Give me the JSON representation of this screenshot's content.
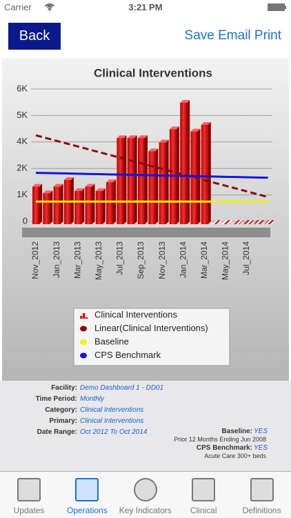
{
  "status_bar": {
    "carrier": "Carrier",
    "time": "3:21 PM"
  },
  "nav": {
    "back": "Back",
    "actions": [
      "Save",
      "Email",
      "Print"
    ]
  },
  "chart_data": {
    "type": "bar",
    "title": "Clinical Interventions",
    "categories": [
      "Nov_2012",
      null,
      "Jan_2013",
      null,
      "Mar_2013",
      null,
      "May_2013",
      null,
      "Jul_2013",
      null,
      "Sep_2013",
      null,
      "Nov_2013",
      null,
      "Jan_2014",
      null,
      "Mar_2014",
      null,
      "May_2014",
      null,
      "Jul_2014",
      null,
      null
    ],
    "series": [
      {
        "name": "Clinical Interventions",
        "type": "bar",
        "color": "#d41a1a",
        "values": [
          1700,
          1400,
          1700,
          2000,
          1500,
          1700,
          1500,
          1900,
          3900,
          3900,
          3900,
          3300,
          3700,
          4300,
          5500,
          4200,
          4500,
          0,
          0,
          0,
          0,
          0,
          0
        ]
      },
      {
        "name": "Linear(Clinical Interventions)",
        "type": "line",
        "dashed": true,
        "color": "#8b0a0a",
        "values": [
          3900,
          3773,
          3646,
          3519,
          3392,
          3265,
          3138,
          3011,
          2884,
          2757,
          2630,
          2503,
          2376,
          2249,
          2122,
          1995,
          1868,
          1741,
          1614,
          1487,
          1360,
          1233,
          1106
        ]
      },
      {
        "name": "Baseline",
        "type": "line",
        "color": "#f2f20a",
        "values": [
          900,
          900,
          900,
          900,
          900,
          900,
          900,
          900,
          900,
          900,
          900,
          900,
          900,
          900,
          900,
          900,
          900,
          900,
          900,
          900,
          900,
          900,
          900
        ]
      },
      {
        "name": "CPS Benchmark",
        "type": "line",
        "color": "#1414e0",
        "values": [
          2200,
          2190,
          2180,
          2170,
          2160,
          2150,
          2140,
          2130,
          2120,
          2110,
          2100,
          2090,
          2080,
          2070,
          2060,
          2050,
          2040,
          2030,
          2020,
          2010,
          2000,
          1990,
          1980
        ]
      }
    ],
    "ylim": [
      0,
      6000
    ],
    "yticks": [
      0,
      {
        "value": 1200,
        "label": "1K"
      },
      {
        "value": 2400,
        "label": "2K"
      },
      {
        "value": 3600,
        "label": "4K"
      },
      {
        "value": 4800,
        "label": "5K"
      },
      {
        "value": 6000,
        "label": "6K"
      }
    ],
    "grid": true
  },
  "info": {
    "rows": [
      {
        "label": "Facility:",
        "value": "Demo Dashboard 1 - DD01"
      },
      {
        "label": "Time Period:",
        "value": "Monthly"
      },
      {
        "label": "Category:",
        "value": "Clinical Interventions"
      },
      {
        "label": "Primary:",
        "value": "Clinical Interventions"
      },
      {
        "label": "Date Range:",
        "value": "Oct 2012 To Oct 2014"
      }
    ],
    "baseline": {
      "label": "Baseline:",
      "value": "YES",
      "note": "Prior 12 Months Ending Jun 2008"
    },
    "benchmark": {
      "label": "CPS Benchmark:",
      "value": "YES",
      "note": "Acute Care 300+ beds"
    }
  },
  "tabs": [
    "Updates",
    "Operations",
    "Key Indicators",
    "Clinical",
    "Definitions"
  ],
  "active_tab": 1
}
